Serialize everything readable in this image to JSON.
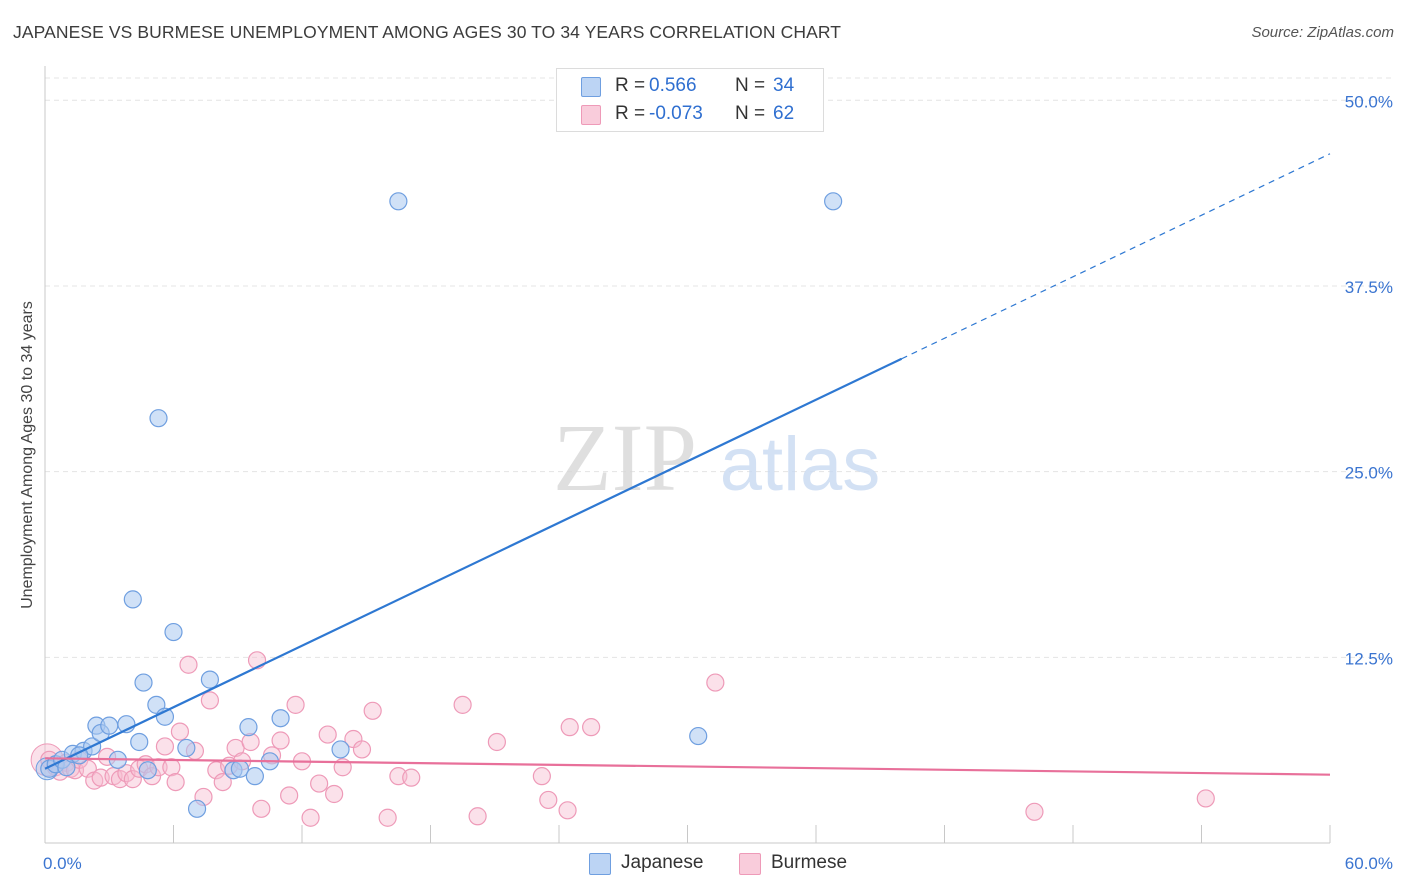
{
  "title": "JAPANESE VS BURMESE UNEMPLOYMENT AMONG AGES 30 TO 34 YEARS CORRELATION CHART",
  "source": "Source: ZipAtlas.com",
  "watermark": {
    "zip": "ZIP",
    "atlas": "atlas"
  },
  "legend": {
    "r_label": "R =",
    "n_label": "N =",
    "japanese": {
      "r": "0.566",
      "n": "34"
    },
    "burmese": {
      "r": "-0.073",
      "n": "62"
    }
  },
  "bottom_legend": {
    "japanese": "Japanese",
    "burmese": "Burmese"
  },
  "colors": {
    "japanese_fill": "#a9c8f0",
    "japanese_stroke": "#6f9fe0",
    "japanese_line": "#2e78d2",
    "burmese_fill": "#f6bcd0",
    "burmese_stroke": "#ee9ab8",
    "burmese_line": "#e8709a",
    "axis_text": "#3a74d0",
    "grid": "#e4e4e4"
  },
  "chart_data": {
    "type": "scatter",
    "title": "JAPANESE VS BURMESE UNEMPLOYMENT AMONG AGES 30 TO 34 YEARS CORRELATION CHART",
    "xlabel": "",
    "ylabel": "Unemployment Among Ages 30 to 34 years",
    "xlim": [
      0,
      60
    ],
    "ylim": [
      0,
      51.5
    ],
    "x_tick_labels": [
      {
        "value": 0,
        "label": "0.0%"
      },
      {
        "value": 60,
        "label": "60.0%"
      }
    ],
    "y_tick_labels": [
      {
        "value": 12.5,
        "label": "12.5%"
      },
      {
        "value": 25,
        "label": "25.0%"
      },
      {
        "value": 37.5,
        "label": "37.5%"
      },
      {
        "value": 50,
        "label": "50.0%"
      }
    ],
    "grid": true,
    "legend_position": "top-center",
    "series": [
      {
        "name": "Japanese",
        "r": 0.566,
        "n": 34,
        "trend": {
          "x0": 0,
          "y0": 5.0,
          "x1": 40,
          "y1": 32.6,
          "dashed_to_x": 60,
          "dashed_to_y": 46.4
        },
        "points": [
          [
            0.2,
            5.0
          ],
          [
            0.5,
            5.3
          ],
          [
            0.8,
            5.6
          ],
          [
            1.0,
            5.1
          ],
          [
            1.3,
            6.0
          ],
          [
            1.8,
            6.2
          ],
          [
            2.2,
            6.5
          ],
          [
            2.4,
            7.9
          ],
          [
            2.6,
            7.4
          ],
          [
            3.0,
            7.9
          ],
          [
            3.4,
            5.6
          ],
          [
            3.8,
            8.0
          ],
          [
            4.4,
            6.8
          ],
          [
            4.6,
            10.8
          ],
          [
            4.8,
            4.9
          ],
          [
            5.2,
            9.3
          ],
          [
            5.3,
            28.6
          ],
          [
            4.1,
            16.4
          ],
          [
            5.6,
            8.5
          ],
          [
            6.0,
            14.2
          ],
          [
            6.6,
            6.4
          ],
          [
            7.1,
            2.3
          ],
          [
            7.7,
            11.0
          ],
          [
            8.8,
            4.9
          ],
          [
            9.1,
            5.0
          ],
          [
            9.5,
            7.8
          ],
          [
            9.8,
            4.5
          ],
          [
            10.5,
            5.5
          ],
          [
            11.0,
            8.4
          ],
          [
            13.8,
            6.3
          ],
          [
            16.5,
            43.2
          ],
          [
            36.8,
            43.2
          ],
          [
            30.5,
            7.2
          ],
          [
            1.6,
            5.9
          ]
        ]
      },
      {
        "name": "Burmese",
        "r": -0.073,
        "n": 62,
        "trend": {
          "x0": 0,
          "y0": 5.7,
          "x1": 60,
          "y1": 4.6
        },
        "points": [
          [
            0.2,
            5.6
          ],
          [
            0.5,
            5.1
          ],
          [
            0.7,
            4.8
          ],
          [
            1.0,
            5.4
          ],
          [
            1.2,
            5.0
          ],
          [
            1.4,
            4.9
          ],
          [
            1.6,
            5.6
          ],
          [
            2.0,
            5.0
          ],
          [
            2.3,
            4.2
          ],
          [
            2.6,
            4.4
          ],
          [
            2.9,
            5.8
          ],
          [
            3.2,
            4.5
          ],
          [
            3.5,
            4.3
          ],
          [
            3.8,
            4.7
          ],
          [
            4.1,
            4.3
          ],
          [
            4.4,
            5.0
          ],
          [
            4.7,
            5.3
          ],
          [
            5.0,
            4.5
          ],
          [
            5.3,
            5.1
          ],
          [
            5.6,
            6.5
          ],
          [
            5.9,
            5.1
          ],
          [
            6.1,
            4.1
          ],
          [
            6.3,
            7.5
          ],
          [
            6.7,
            12.0
          ],
          [
            7.0,
            6.2
          ],
          [
            7.4,
            3.1
          ],
          [
            7.7,
            9.6
          ],
          [
            8.0,
            4.9
          ],
          [
            8.3,
            4.1
          ],
          [
            8.6,
            5.2
          ],
          [
            8.9,
            6.4
          ],
          [
            9.2,
            5.5
          ],
          [
            9.6,
            6.8
          ],
          [
            9.9,
            12.3
          ],
          [
            10.1,
            2.3
          ],
          [
            10.6,
            5.9
          ],
          [
            11.0,
            6.9
          ],
          [
            11.4,
            3.2
          ],
          [
            11.7,
            9.3
          ],
          [
            12.0,
            5.5
          ],
          [
            12.4,
            1.7
          ],
          [
            12.8,
            4.0
          ],
          [
            13.2,
            7.3
          ],
          [
            13.5,
            3.3
          ],
          [
            13.9,
            5.1
          ],
          [
            14.4,
            7.0
          ],
          [
            14.8,
            6.3
          ],
          [
            15.3,
            8.9
          ],
          [
            16.0,
            1.7
          ],
          [
            16.5,
            4.5
          ],
          [
            17.1,
            4.4
          ],
          [
            19.5,
            9.3
          ],
          [
            20.2,
            1.8
          ],
          [
            21.1,
            6.8
          ],
          [
            23.2,
            4.5
          ],
          [
            23.5,
            2.9
          ],
          [
            24.4,
            2.2
          ],
          [
            24.5,
            7.8
          ],
          [
            25.5,
            7.8
          ],
          [
            31.3,
            10.8
          ],
          [
            46.2,
            2.1
          ],
          [
            54.2,
            3.0
          ]
        ]
      }
    ]
  }
}
